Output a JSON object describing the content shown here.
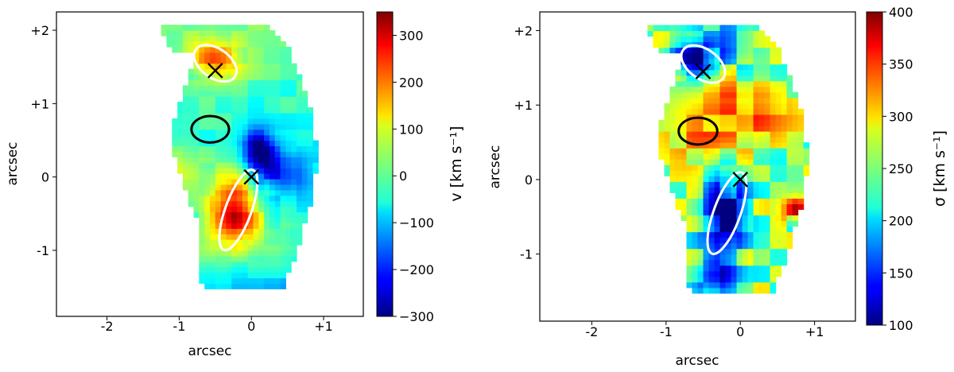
{
  "chart_data": [
    {
      "type": "heatmap",
      "title": "",
      "xlabel": "arcsec",
      "ylabel": "arcsec",
      "xlim": [
        -2.7,
        1.55
      ],
      "ylim": [
        -1.9,
        2.25
      ],
      "xticks": [
        -2,
        -1,
        0,
        1
      ],
      "xtick_labels": [
        "-2",
        "-1",
        "0",
        "+1"
      ],
      "yticks": [
        -1,
        0,
        1,
        2
      ],
      "ytick_labels": [
        "-1",
        "0",
        "+1",
        "+2"
      ],
      "colormap": "jet",
      "colorbar": {
        "label": "v [km s⁻¹]",
        "range": [
          -300,
          350
        ],
        "ticks": [
          -300,
          -200,
          -100,
          0,
          100,
          200,
          300
        ],
        "tick_labels": [
          "−300",
          "−200",
          "−100",
          "0",
          "100",
          "200",
          "300"
        ]
      },
      "markers": [
        {
          "symbol": "x",
          "x": -0.5,
          "y": 1.45
        },
        {
          "symbol": "x",
          "x": 0.0,
          "y": 0.0
        }
      ],
      "contours": [
        {
          "color": "#ffffff",
          "cx": -0.5,
          "cy": 1.55,
          "rx": 0.33,
          "ry": 0.2,
          "rotation_deg": 35
        },
        {
          "color": "#ffffff",
          "cx": -0.18,
          "cy": -0.45,
          "rx": 0.18,
          "ry": 0.58,
          "rotation_deg": 20
        },
        {
          "color": "#000000",
          "cx": -0.57,
          "cy": 0.65,
          "rx": 0.26,
          "ry": 0.18,
          "rotation_deg": 0
        }
      ]
    },
    {
      "type": "heatmap",
      "title": "",
      "xlabel": "arcsec",
      "ylabel": "arcsec",
      "xlim": [
        -2.7,
        1.55
      ],
      "ylim": [
        -1.9,
        2.25
      ],
      "xticks": [
        -2,
        -1,
        0,
        1
      ],
      "xtick_labels": [
        "-2",
        "-1",
        "0",
        "+1"
      ],
      "yticks": [
        -1,
        0,
        1,
        2
      ],
      "ytick_labels": [
        "-1",
        "0",
        "+1",
        "+2"
      ],
      "colormap": "jet",
      "colorbar": {
        "label": "σ [km s⁻¹]",
        "range": [
          100,
          400
        ],
        "ticks": [
          100,
          150,
          200,
          250,
          300,
          350,
          400
        ],
        "tick_labels": [
          "100",
          "150",
          "200",
          "250",
          "300",
          "350",
          "400"
        ]
      },
      "markers": [
        {
          "symbol": "x",
          "x": -0.5,
          "y": 1.45
        },
        {
          "symbol": "x",
          "x": 0.0,
          "y": 0.0
        }
      ],
      "contours": [
        {
          "color": "#ffffff",
          "cx": -0.5,
          "cy": 1.55,
          "rx": 0.33,
          "ry": 0.2,
          "rotation_deg": 35
        },
        {
          "color": "#ffffff",
          "cx": -0.18,
          "cy": -0.45,
          "rx": 0.18,
          "ry": 0.58,
          "rotation_deg": 20
        },
        {
          "color": "#000000",
          "cx": -0.57,
          "cy": 0.65,
          "rx": 0.26,
          "ry": 0.18,
          "rotation_deg": 0
        }
      ]
    }
  ]
}
